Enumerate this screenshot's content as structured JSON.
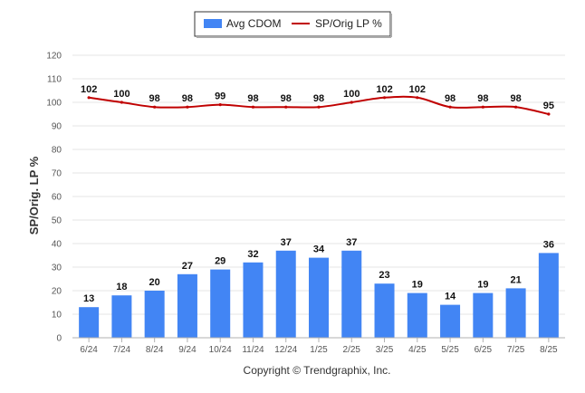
{
  "chart_data": {
    "type": "bar",
    "categories": [
      "6/24",
      "7/24",
      "8/24",
      "9/24",
      "10/24",
      "11/24",
      "12/24",
      "1/25",
      "2/25",
      "3/25",
      "4/25",
      "5/25",
      "6/25",
      "7/25",
      "8/25"
    ],
    "series": [
      {
        "name": "Avg CDOM",
        "type": "bar",
        "color": "#4285f4",
        "values": [
          13,
          18,
          20,
          27,
          29,
          32,
          37,
          34,
          37,
          23,
          19,
          14,
          19,
          21,
          36
        ]
      },
      {
        "name": "SP/Orig LP %",
        "type": "line",
        "color": "#c00000",
        "values": [
          102,
          100,
          98,
          98,
          99,
          98,
          98,
          98,
          100,
          102,
          102,
          98,
          98,
          98,
          95
        ]
      }
    ],
    "ylabel": "SP/Orig. LP %",
    "ylim": [
      0,
      120
    ],
    "yticks": [
      0,
      10,
      20,
      30,
      40,
      50,
      60,
      70,
      80,
      90,
      100,
      110,
      120
    ],
    "grid": true,
    "legend": "top-center"
  },
  "footer": {
    "copyright": "Copyright © Trendgraphix, Inc."
  }
}
